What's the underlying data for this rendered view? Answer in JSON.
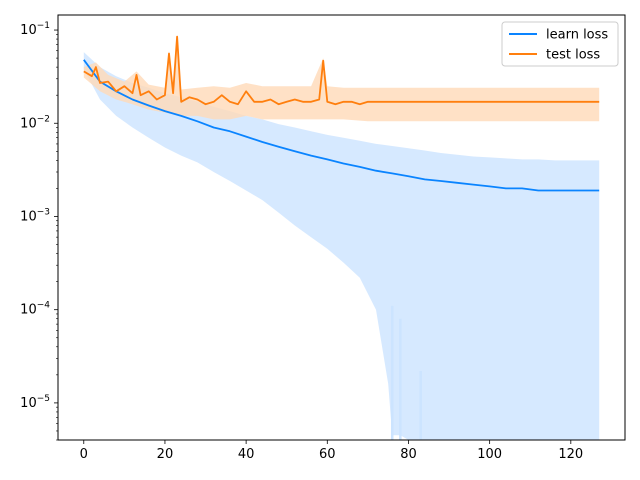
{
  "chart_data": {
    "type": "line",
    "title": "",
    "xlabel": "",
    "ylabel": "",
    "xlim": [
      -6.35,
      133.35
    ],
    "yscale": "log",
    "ylim": [
      4e-06,
      0.145
    ],
    "grid": false,
    "legend_position": "top-right",
    "x_ticks": [
      0,
      20,
      40,
      60,
      80,
      100,
      120
    ],
    "y_ticks": [
      {
        "value": 1e-05,
        "base": "10",
        "exp": "−5"
      },
      {
        "value": 0.0001,
        "base": "10",
        "exp": "−4"
      },
      {
        "value": 0.001,
        "base": "10",
        "exp": "−3"
      },
      {
        "value": 0.01,
        "base": "10",
        "exp": "−2"
      },
      {
        "value": 0.1,
        "base": "10",
        "exp": "−1"
      }
    ],
    "series": [
      {
        "name": "learn loss",
        "color": "#0a84ff",
        "band_color": "#cce4ff",
        "points": [
          [
            0,
            0.048
          ],
          [
            4,
            0.028
          ],
          [
            8,
            0.022
          ],
          [
            12,
            0.018
          ],
          [
            16,
            0.0155
          ],
          [
            20,
            0.0135
          ],
          [
            24,
            0.012
          ],
          [
            28,
            0.0105
          ],
          [
            32,
            0.009
          ],
          [
            36,
            0.0082
          ],
          [
            40,
            0.0072
          ],
          [
            44,
            0.0063
          ],
          [
            48,
            0.0056
          ],
          [
            52,
            0.005
          ],
          [
            56,
            0.0045
          ],
          [
            60,
            0.0041
          ],
          [
            64,
            0.0037
          ],
          [
            68,
            0.0034
          ],
          [
            72,
            0.0031
          ],
          [
            76,
            0.0029
          ],
          [
            80,
            0.0027
          ],
          [
            84,
            0.0025
          ],
          [
            88,
            0.0024
          ],
          [
            92,
            0.0023
          ],
          [
            96,
            0.0022
          ],
          [
            100,
            0.0021
          ],
          [
            104,
            0.002
          ],
          [
            108,
            0.002
          ],
          [
            112,
            0.0019
          ],
          [
            116,
            0.0019
          ],
          [
            120,
            0.0019
          ],
          [
            124,
            0.0019
          ],
          [
            127,
            0.0019
          ]
        ],
        "band_upper": [
          [
            0,
            0.058
          ],
          [
            4,
            0.04
          ],
          [
            8,
            0.032
          ],
          [
            12,
            0.027
          ],
          [
            16,
            0.024
          ],
          [
            20,
            0.021
          ],
          [
            24,
            0.019
          ],
          [
            28,
            0.017
          ],
          [
            32,
            0.015
          ],
          [
            36,
            0.0135
          ],
          [
            40,
            0.012
          ],
          [
            44,
            0.011
          ],
          [
            48,
            0.0098
          ],
          [
            52,
            0.009
          ],
          [
            56,
            0.0082
          ],
          [
            60,
            0.0075
          ],
          [
            64,
            0.007
          ],
          [
            68,
            0.0065
          ],
          [
            72,
            0.006
          ],
          [
            76,
            0.0057
          ],
          [
            80,
            0.0054
          ],
          [
            84,
            0.0051
          ],
          [
            88,
            0.0048
          ],
          [
            92,
            0.0046
          ],
          [
            96,
            0.0044
          ],
          [
            100,
            0.0043
          ],
          [
            104,
            0.0042
          ],
          [
            108,
            0.0041
          ],
          [
            112,
            0.0041
          ],
          [
            116,
            0.004
          ],
          [
            120,
            0.004
          ],
          [
            124,
            0.004
          ],
          [
            127,
            0.004
          ]
        ],
        "band_lower": [
          [
            0,
            0.038
          ],
          [
            4,
            0.018
          ],
          [
            8,
            0.012
          ],
          [
            12,
            0.009
          ],
          [
            16,
            0.007
          ],
          [
            20,
            0.0055
          ],
          [
            24,
            0.0045
          ],
          [
            28,
            0.0038
          ],
          [
            32,
            0.003
          ],
          [
            36,
            0.0024
          ],
          [
            40,
            0.0019
          ],
          [
            44,
            0.0015
          ],
          [
            48,
            0.0011
          ],
          [
            52,
            0.0008
          ],
          [
            56,
            0.0006
          ],
          [
            60,
            0.00045
          ],
          [
            64,
            0.00032
          ],
          [
            68,
            0.00022
          ],
          [
            72,
            0.0001
          ],
          [
            75,
            1.6e-05
          ],
          [
            76,
            4.5e-06
          ],
          [
            78,
            4.5e-06
          ],
          [
            80,
            4e-06
          ],
          [
            84,
            4e-06
          ],
          [
            127,
            4e-06
          ]
        ]
      },
      {
        "name": "test loss",
        "color": "#ff7f0e",
        "band_color": "#ffd9b8",
        "points": [
          [
            0,
            0.036
          ],
          [
            2,
            0.032
          ],
          [
            3,
            0.04
          ],
          [
            4,
            0.027
          ],
          [
            6,
            0.028
          ],
          [
            8,
            0.022
          ],
          [
            10,
            0.025
          ],
          [
            12,
            0.021
          ],
          [
            13,
            0.033
          ],
          [
            14,
            0.02
          ],
          [
            16,
            0.022
          ],
          [
            18,
            0.018
          ],
          [
            20,
            0.02
          ],
          [
            21,
            0.056
          ],
          [
            22,
            0.021
          ],
          [
            23,
            0.085
          ],
          [
            24,
            0.017
          ],
          [
            26,
            0.019
          ],
          [
            28,
            0.018
          ],
          [
            30,
            0.016
          ],
          [
            32,
            0.017
          ],
          [
            34,
            0.02
          ],
          [
            36,
            0.017
          ],
          [
            38,
            0.016
          ],
          [
            40,
            0.022
          ],
          [
            42,
            0.017
          ],
          [
            44,
            0.017
          ],
          [
            46,
            0.018
          ],
          [
            48,
            0.016
          ],
          [
            50,
            0.017
          ],
          [
            52,
            0.018
          ],
          [
            54,
            0.017
          ],
          [
            56,
            0.017
          ],
          [
            58,
            0.018
          ],
          [
            59,
            0.047
          ],
          [
            60,
            0.017
          ],
          [
            62,
            0.016
          ],
          [
            64,
            0.017
          ],
          [
            66,
            0.017
          ],
          [
            68,
            0.016
          ],
          [
            70,
            0.017
          ],
          [
            74,
            0.017
          ],
          [
            78,
            0.017
          ],
          [
            82,
            0.017
          ],
          [
            86,
            0.017
          ],
          [
            90,
            0.017
          ],
          [
            94,
            0.017
          ],
          [
            98,
            0.017
          ],
          [
            102,
            0.017
          ],
          [
            106,
            0.017
          ],
          [
            110,
            0.017
          ],
          [
            114,
            0.017
          ],
          [
            118,
            0.017
          ],
          [
            122,
            0.017
          ],
          [
            127,
            0.017
          ]
        ],
        "band_upper": [
          [
            0,
            0.04
          ],
          [
            3,
            0.045
          ],
          [
            6,
            0.033
          ],
          [
            10,
            0.028
          ],
          [
            13,
            0.036
          ],
          [
            16,
            0.026
          ],
          [
            20,
            0.024
          ],
          [
            21,
            0.06
          ],
          [
            22,
            0.026
          ],
          [
            23,
            0.09
          ],
          [
            24,
            0.023
          ],
          [
            28,
            0.024
          ],
          [
            32,
            0.025
          ],
          [
            36,
            0.024
          ],
          [
            40,
            0.027
          ],
          [
            44,
            0.025
          ],
          [
            48,
            0.025
          ],
          [
            52,
            0.025
          ],
          [
            56,
            0.025
          ],
          [
            59,
            0.05
          ],
          [
            60,
            0.025
          ],
          [
            64,
            0.024
          ],
          [
            70,
            0.024
          ],
          [
            80,
            0.024
          ],
          [
            90,
            0.024
          ],
          [
            100,
            0.024
          ],
          [
            110,
            0.024
          ],
          [
            120,
            0.024
          ],
          [
            127,
            0.024
          ]
        ],
        "band_lower": [
          [
            0,
            0.031
          ],
          [
            4,
            0.022
          ],
          [
            8,
            0.018
          ],
          [
            12,
            0.016
          ],
          [
            16,
            0.014
          ],
          [
            20,
            0.013
          ],
          [
            24,
            0.012
          ],
          [
            28,
            0.012
          ],
          [
            32,
            0.011
          ],
          [
            36,
            0.011
          ],
          [
            40,
            0.012
          ],
          [
            44,
            0.011
          ],
          [
            48,
            0.011
          ],
          [
            52,
            0.011
          ],
          [
            56,
            0.011
          ],
          [
            60,
            0.011
          ],
          [
            64,
            0.011
          ],
          [
            70,
            0.0105
          ],
          [
            80,
            0.0105
          ],
          [
            90,
            0.0105
          ],
          [
            100,
            0.0105
          ],
          [
            110,
            0.0105
          ],
          [
            120,
            0.0105
          ],
          [
            127,
            0.0105
          ]
        ]
      }
    ],
    "spikes": [
      {
        "series": "learn loss",
        "x": 76,
        "low": 4e-06,
        "high": 0.00011
      },
      {
        "series": "learn loss",
        "x": 78,
        "low": 4e-06,
        "high": 8e-05
      },
      {
        "series": "learn loss",
        "x": 83,
        "low": 4e-06,
        "high": 2.2e-05
      }
    ]
  }
}
